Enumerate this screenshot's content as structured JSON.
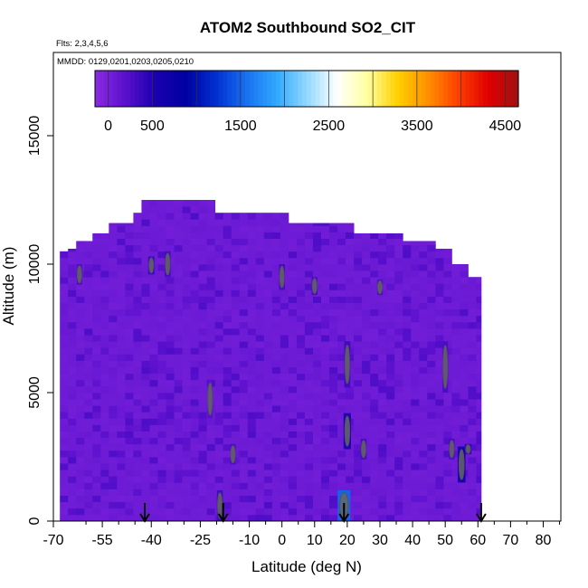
{
  "chart_data": {
    "type": "heatmap",
    "title": "ATOM2 Southbound SO2_CIT",
    "flights_note": "Flts: 2,3,4,5,6",
    "dates_note": "MMDD: 0129,0201,0203,0205,0210",
    "xlabel": "Latitude (deg N)",
    "ylabel": "Altitude (m)",
    "xlim": [
      -70,
      85
    ],
    "ylim": [
      0,
      17500
    ],
    "x_ticks": [
      -70,
      -55,
      -40,
      -25,
      -10,
      0,
      10,
      20,
      30,
      40,
      50,
      60,
      70,
      80
    ],
    "x_tick_labels": [
      "-70",
      "-55",
      "-40",
      "-25",
      "-10",
      "0",
      "10",
      "20",
      "30",
      "40",
      "50",
      "60",
      "70",
      "80"
    ],
    "y_ticks": [
      0,
      5000,
      10000,
      15000
    ],
    "y_tick_labels": [
      "0",
      "5000",
      "10000",
      "15000"
    ],
    "colorbar": {
      "range": [
        -150,
        4650
      ],
      "tick_values": [
        0,
        500,
        1500,
        2500,
        3500,
        4500
      ],
      "tick_labels": [
        "0",
        "500",
        "1500",
        "2500",
        "3500",
        "4500"
      ],
      "colors": [
        "#8a2be2",
        "#5a10cc",
        "#1a00b0",
        "#0000a0",
        "#0030d0",
        "#1870f0",
        "#30a8ff",
        "#90d8ff",
        "#ffffff",
        "#ffffa0",
        "#ffd000",
        "#ff9000",
        "#ff4000",
        "#e00000",
        "#a01010"
      ]
    },
    "background_value": 60,
    "envelope_top": [
      {
        "lat_range": [
          -68,
          -65
        ],
        "max_alt": 10500
      },
      {
        "lat_range": [
          -65,
          -62
        ],
        "max_alt": 10600
      },
      {
        "lat_range": [
          -62,
          -57
        ],
        "max_alt": 10900
      },
      {
        "lat_range": [
          -57,
          -52
        ],
        "max_alt": 11200
      },
      {
        "lat_range": [
          -52,
          -46
        ],
        "max_alt": 11600
      },
      {
        "lat_range": [
          -46,
          -42
        ],
        "max_alt": 12000
      },
      {
        "lat_range": [
          -42,
          -20
        ],
        "max_alt": 12500
      },
      {
        "lat_range": [
          -20,
          3
        ],
        "max_alt": 12000
      },
      {
        "lat_range": [
          3,
          22
        ],
        "max_alt": 11600
      },
      {
        "lat_range": [
          22,
          38
        ],
        "max_alt": 11200
      },
      {
        "lat_range": [
          38,
          48
        ],
        "max_alt": 10900
      },
      {
        "lat_range": [
          48,
          52
        ],
        "max_alt": 10600
      },
      {
        "lat_range": [
          52,
          57
        ],
        "max_alt": 10000
      },
      {
        "lat_range": [
          57,
          61
        ],
        "max_alt": 9500
      }
    ],
    "features": [
      {
        "lat": -62,
        "alt_range": [
          9200,
          10000
        ],
        "value": 250
      },
      {
        "lat": -40,
        "alt_range": [
          9600,
          10300
        ],
        "value": 350
      },
      {
        "lat": -35,
        "alt_range": [
          9500,
          10500
        ],
        "value": 300
      },
      {
        "lat": -22,
        "alt_range": [
          4000,
          5500
        ],
        "value": 200
      },
      {
        "lat": -19,
        "alt_range": [
          0,
          1200
        ],
        "value": 320
      },
      {
        "lat": -15,
        "alt_range": [
          2200,
          3000
        ],
        "value": 260
      },
      {
        "lat": 0,
        "alt_range": [
          9000,
          10000
        ],
        "value": 300
      },
      {
        "lat": 10,
        "alt_range": [
          8800,
          9500
        ],
        "value": 280
      },
      {
        "lat": 19,
        "alt_range": [
          0,
          1200
        ],
        "value": 1500
      },
      {
        "lat": 20,
        "alt_range": [
          2800,
          4200
        ],
        "value": 500
      },
      {
        "lat": 20,
        "alt_range": [
          5200,
          7000
        ],
        "value": 320
      },
      {
        "lat": 25,
        "alt_range": [
          2400,
          3200
        ],
        "value": 300
      },
      {
        "lat": 30,
        "alt_range": [
          8800,
          9400
        ],
        "value": 260
      },
      {
        "lat": 50,
        "alt_range": [
          5000,
          7000
        ],
        "value": 260
      },
      {
        "lat": 52,
        "alt_range": [
          2400,
          3200
        ],
        "value": 280
      },
      {
        "lat": 55,
        "alt_range": [
          1500,
          2900
        ],
        "value": 550
      },
      {
        "lat": 57,
        "alt_range": [
          2600,
          3000
        ],
        "value": 400
      }
    ],
    "flight_markers_lat": [
      -42,
      -18,
      19,
      61
    ]
  }
}
